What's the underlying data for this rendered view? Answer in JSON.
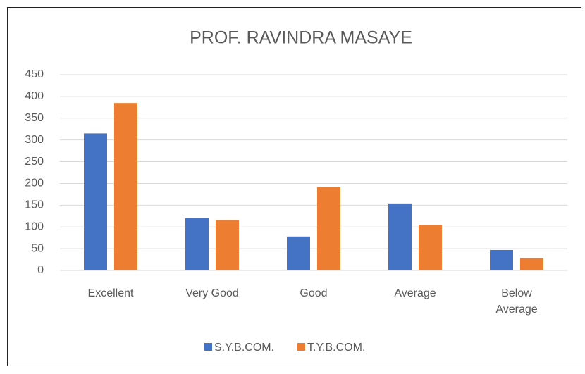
{
  "chart_data": {
    "type": "bar",
    "title": "PROF. RAVINDRA MASAYE",
    "categories": [
      "Excellent",
      "Very Good",
      "Good",
      "Average",
      "Below Average"
    ],
    "series": [
      {
        "name": "S.Y.B.COM.",
        "color": "#4472c4",
        "values": [
          315,
          120,
          78,
          154,
          47
        ]
      },
      {
        "name": "T.Y.B.COM.",
        "color": "#ed7d31",
        "values": [
          385,
          116,
          192,
          104,
          28
        ]
      }
    ],
    "ylim": [
      0,
      450
    ],
    "yticks": [
      0,
      50,
      100,
      150,
      200,
      250,
      300,
      350,
      400,
      450
    ],
    "grid": true,
    "legend": "bottom"
  }
}
